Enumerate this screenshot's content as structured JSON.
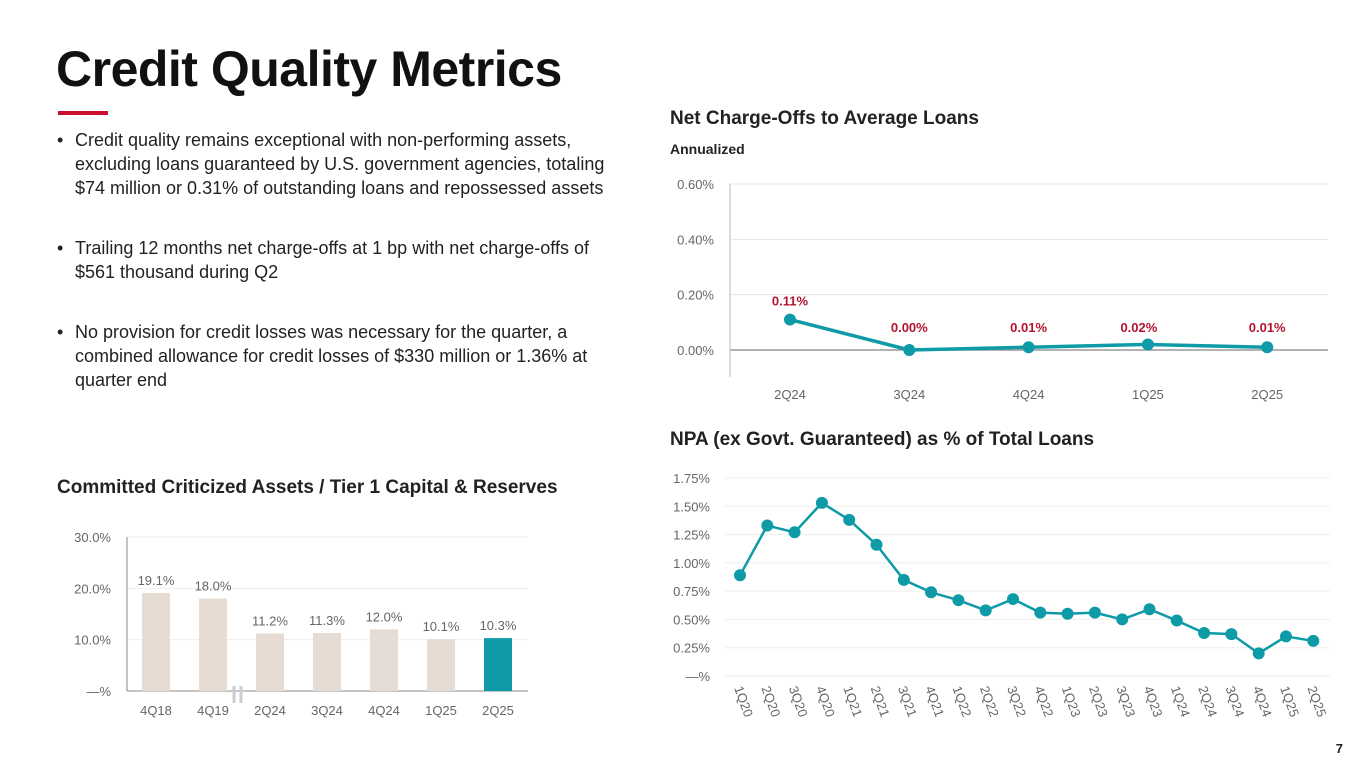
{
  "title": "Credit Quality Metrics",
  "bullets": [
    "Credit quality remains exceptional with non-performing assets, excluding loans guaranteed by U.S. government agencies, totaling $74 million or 0.31% of outstanding loans and repossessed assets",
    "Trailing 12 months net charge-offs at 1 bp with net charge-offs of $561 thousand during Q2",
    "No provision for credit losses was necessary for the quarter, a combined allowance for credit losses of $330 million or 1.36% at quarter end"
  ],
  "page_number": "7",
  "colors": {
    "accent_red": "#c8102e",
    "teal": "#0e9aa7",
    "bar_beige": "#e6dcd3",
    "label_red": "#b5122e"
  },
  "chart_data": [
    {
      "type": "line",
      "title": "Net Charge-Offs to Average Loans",
      "subtitle": "Annualized",
      "categories": [
        "2Q24",
        "3Q24",
        "4Q24",
        "1Q25",
        "2Q25"
      ],
      "values": [
        0.11,
        0.0,
        0.01,
        0.02,
        0.01
      ],
      "data_labels": [
        "0.11%",
        "0.00%",
        "0.01%",
        "0.02%",
        "0.01%"
      ],
      "yticks": [
        "0.00%",
        "0.20%",
        "0.40%",
        "0.60%"
      ],
      "ylim": [
        0,
        0.6
      ],
      "grid": true
    },
    {
      "type": "bar",
      "title": "Committed Criticized Assets / Tier 1 Capital & Reserves",
      "categories": [
        "4Q18",
        "4Q19",
        "2Q24",
        "3Q24",
        "4Q24",
        "1Q25",
        "2Q25"
      ],
      "values": [
        19.1,
        18.0,
        11.2,
        11.3,
        12.0,
        10.1,
        10.3
      ],
      "data_labels": [
        "19.1%",
        "18.0%",
        "11.2%",
        "11.3%",
        "12.0%",
        "10.1%",
        "10.3%"
      ],
      "yticks": [
        "—%",
        "10.0%",
        "20.0%",
        "30.0%"
      ],
      "ylim": [
        0,
        30
      ],
      "grid": true,
      "axis_break_after": "4Q19",
      "highlight": "2Q25"
    },
    {
      "type": "line",
      "title": "NPA (ex Govt. Guaranteed) as % of Total Loans",
      "categories": [
        "1Q20",
        "2Q20",
        "3Q20",
        "4Q20",
        "1Q21",
        "2Q21",
        "3Q21",
        "4Q21",
        "1Q22",
        "2Q22",
        "3Q22",
        "4Q22",
        "1Q23",
        "2Q23",
        "3Q23",
        "4Q23",
        "1Q24",
        "2Q24",
        "3Q24",
        "4Q24",
        "1Q25",
        "2Q25"
      ],
      "values": [
        0.89,
        1.33,
        1.27,
        1.53,
        1.38,
        1.16,
        0.85,
        0.74,
        0.67,
        0.58,
        0.68,
        0.56,
        0.55,
        0.56,
        0.5,
        0.59,
        0.49,
        0.38,
        0.37,
        0.2,
        0.35,
        0.31
      ],
      "yticks": [
        "—%",
        "0.25%",
        "0.50%",
        "0.75%",
        "1.00%",
        "1.25%",
        "1.50%",
        "1.75%"
      ],
      "ylim": [
        0,
        1.75
      ],
      "grid": true
    }
  ]
}
